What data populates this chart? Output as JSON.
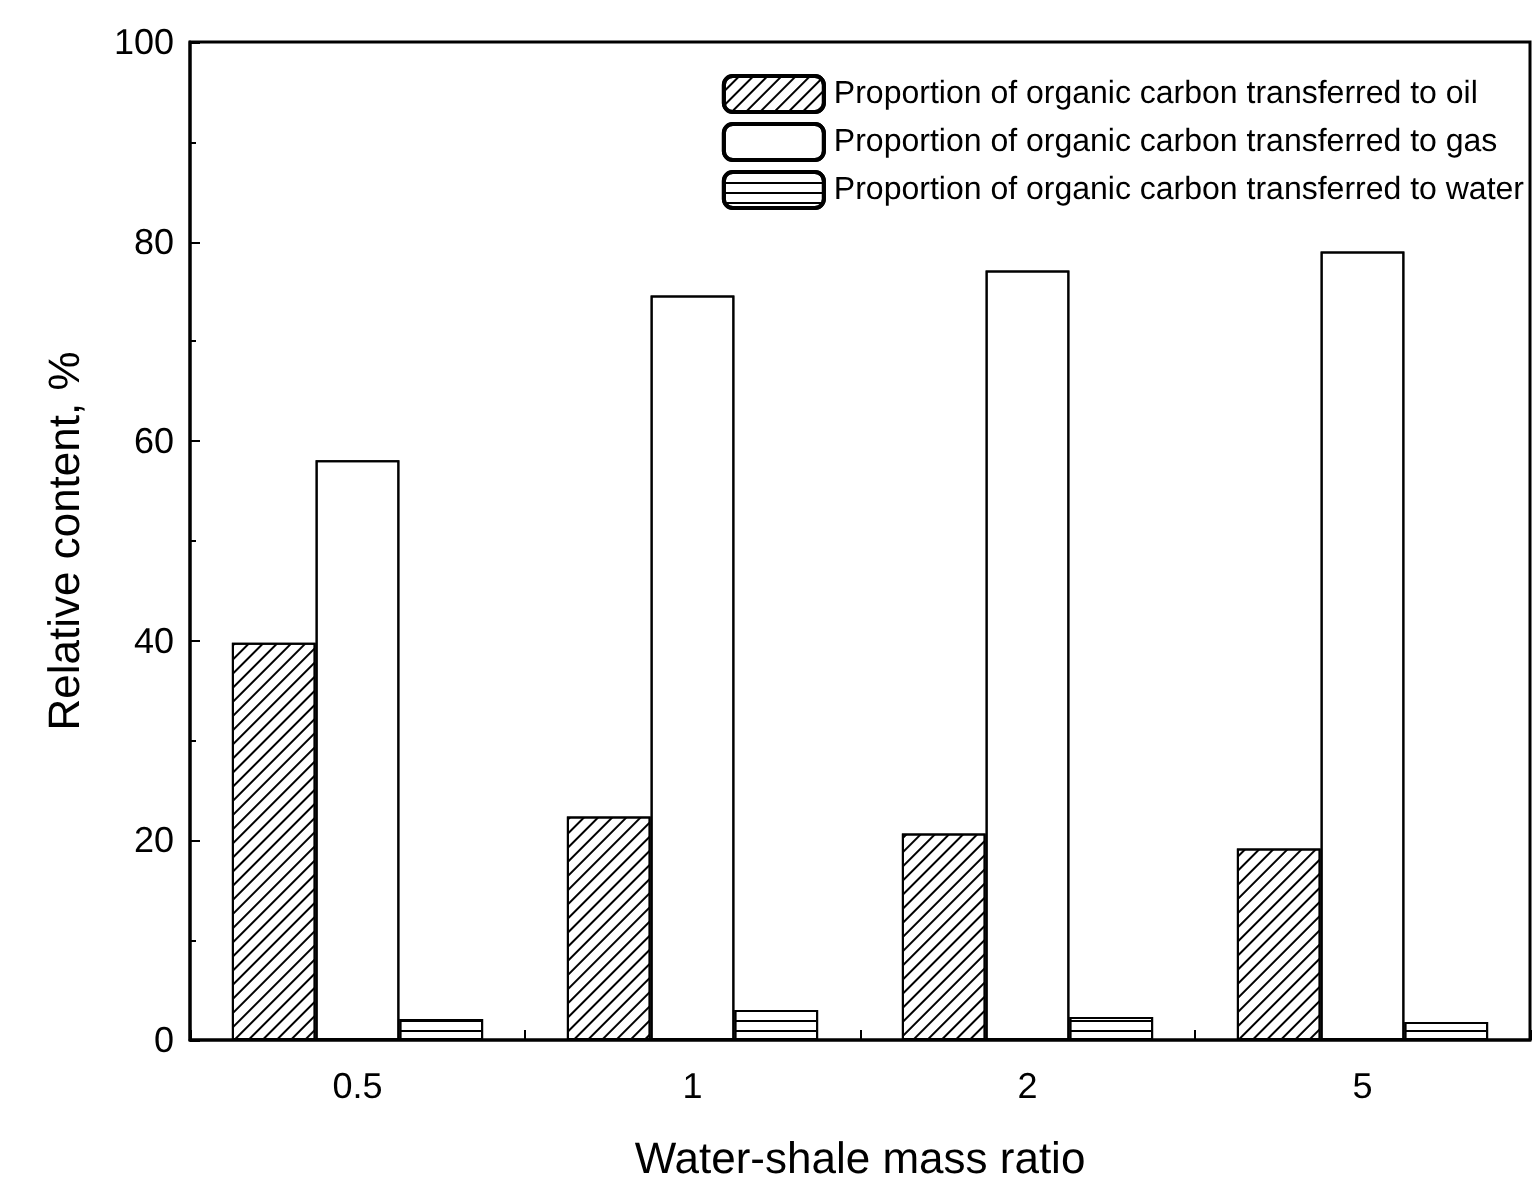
{
  "chart_data": {
    "type": "bar",
    "xlabel": "Water-shale mass ratio",
    "ylabel": "Relative content, %",
    "categories": [
      "0.5",
      "1",
      "2",
      "5"
    ],
    "series": [
      {
        "name": "Proportion of organic carbon transferred to oil",
        "color": "#000000",
        "values": [
          39.8,
          22.4,
          20.7,
          19.2
        ]
      },
      {
        "name": "Proportion of organic carbon transferred to gas",
        "color": "#000000",
        "values": [
          58.1,
          74.6,
          77.1,
          79.0
        ]
      },
      {
        "name": "Proportion of organic carbon transferred to water",
        "color": "#000000",
        "values": [
          2.1,
          3.0,
          2.3,
          1.8
        ]
      }
    ],
    "ylim": [
      0,
      100
    ],
    "yticks": [
      0,
      20,
      40,
      60,
      80,
      100
    ],
    "grid": false,
    "legend": "top right"
  }
}
